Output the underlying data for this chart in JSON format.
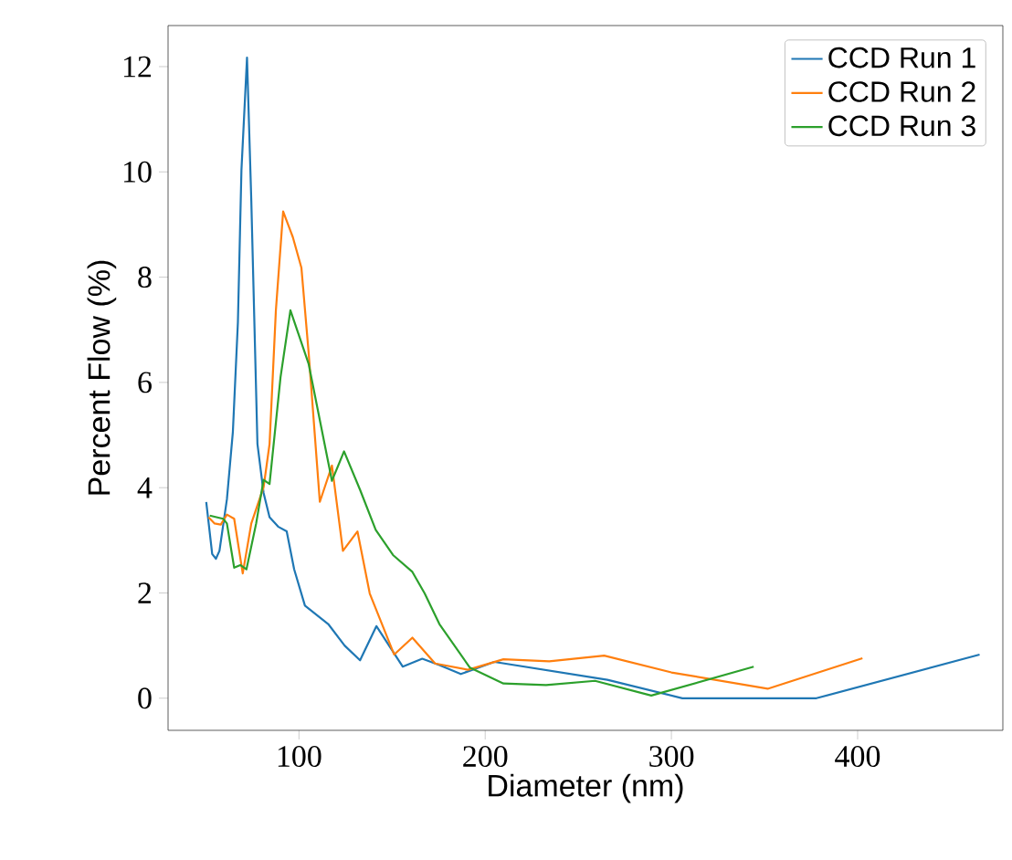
{
  "chart_data": {
    "type": "line",
    "xlabel": "Diameter (nm)",
    "ylabel": "Percent Flow (%)",
    "xlim": [
      29.7,
      478
    ],
    "ylim": [
      -0.61,
      12.78
    ],
    "xticks": [
      100,
      200,
      300,
      400
    ],
    "yticks": [
      0,
      2,
      4,
      6,
      8,
      10,
      12
    ],
    "legend": "top right",
    "series": [
      {
        "name": "CCD Run 1",
        "color": "#1f77b4",
        "x": [
          50.2,
          53.4,
          55.4,
          57.3,
          61.3,
          64.5,
          67.2,
          69.1,
          72.1,
          74.4,
          77.7,
          81,
          84.2,
          88.8,
          93.4,
          97.4,
          103.2,
          115.7,
          124.5,
          132.8,
          141.6,
          155.7,
          166.2,
          175.4,
          186.9,
          204.9,
          265.6,
          305.9,
          377.9,
          465.5
        ],
        "values": [
          3.73,
          2.74,
          2.65,
          2.8,
          3.78,
          5.06,
          7.14,
          10.03,
          12.17,
          9.45,
          4.83,
          3.9,
          3.44,
          3.26,
          3.17,
          2.45,
          1.76,
          1.41,
          1.0,
          0.72,
          1.37,
          0.6,
          0.75,
          0.63,
          0.46,
          0.69,
          0.35,
          0,
          0,
          0.83
        ]
      },
      {
        "name": "CCD Run 2",
        "color": "#ff7f0e",
        "x": [
          51.4,
          54.7,
          58,
          61.3,
          65.2,
          69.8,
          74.4,
          81,
          84.2,
          87.6,
          91.5,
          96.7,
          101.3,
          105.2,
          111.2,
          117.7,
          123.6,
          131.4,
          138,
          151.1,
          160.9,
          173.1,
          190.8,
          209.8,
          234.4,
          263.9,
          300,
          351.7,
          402.6
        ],
        "values": [
          3.44,
          3.32,
          3.3,
          3.49,
          3.41,
          2.37,
          3.32,
          4.01,
          4.83,
          7.37,
          9.25,
          8.76,
          8.18,
          6.56,
          3.73,
          4.42,
          2.8,
          3.17,
          1.99,
          0.83,
          1.15,
          0.66,
          0.54,
          0.74,
          0.7,
          0.81,
          0.49,
          0.18,
          0.76
        ]
      },
      {
        "name": "CCD Run 3",
        "color": "#2ca02c",
        "x": [
          52.1,
          59.3,
          61.3,
          65.2,
          68.5,
          71.8,
          77,
          81,
          84.2,
          90.1,
          95.4,
          105.2,
          117.7,
          124.2,
          132.8,
          141.2,
          150.5,
          160.9,
          167.5,
          175.4,
          191.8,
          209.8,
          232.7,
          259,
          289.2,
          344.2
        ],
        "values": [
          3.47,
          3.41,
          3.32,
          2.48,
          2.53,
          2.45,
          3.32,
          4.15,
          4.07,
          6.1,
          7.37,
          6.35,
          4.13,
          4.69,
          3.96,
          3.2,
          2.72,
          2.4,
          1.99,
          1.41,
          0.58,
          0.28,
          0.25,
          0.33,
          0.05,
          0.6
        ]
      }
    ]
  }
}
